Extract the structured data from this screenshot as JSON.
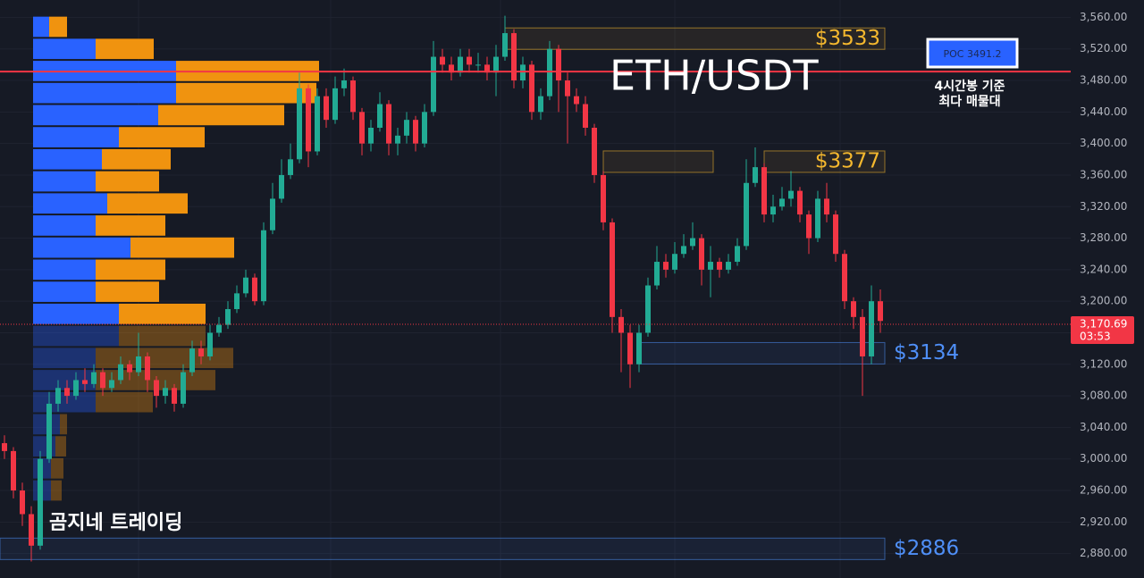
{
  "chart_data": {
    "type": "candlestick",
    "title": "ETH/USDT",
    "watermark": "곰지네 트레이딩",
    "ylim": [
      2849,
      3582
    ],
    "yticks": [
      {
        "value": 3560,
        "label": "3,560.00"
      },
      {
        "value": 3520,
        "label": "3,520.00"
      },
      {
        "value": 3480,
        "label": "3,480.00"
      },
      {
        "value": 3440,
        "label": "3,440.00"
      },
      {
        "value": 3400,
        "label": "3,400.00"
      },
      {
        "value": 3360,
        "label": "3,360.00"
      },
      {
        "value": 3320,
        "label": "3,320.00"
      },
      {
        "value": 3280,
        "label": "3,280.00"
      },
      {
        "value": 3240,
        "label": "3,240.00"
      },
      {
        "value": 3200,
        "label": "3,200.00"
      },
      {
        "value": 3160,
        "label": "3,160.00"
      },
      {
        "value": 3120,
        "label": "3,120.00"
      },
      {
        "value": 3080,
        "label": "3,080.00"
      },
      {
        "value": 3040,
        "label": "3,040.00"
      },
      {
        "value": 3000,
        "label": "3,000.00"
      },
      {
        "value": 2960,
        "label": "2,960.00"
      },
      {
        "value": 2920,
        "label": "2,920.00"
      },
      {
        "value": 2880,
        "label": "2,880.00"
      }
    ],
    "up_color": "#22ab94",
    "down_color": "#f23645",
    "open": [
      3020,
      3010,
      2960,
      2930,
      2890,
      3000,
      3070,
      3090,
      3080,
      3100,
      3095,
      3110,
      3090,
      3100,
      3120,
      3110,
      3130,
      3100,
      3080,
      3090,
      3070,
      3110,
      3140,
      3130,
      3160,
      3170,
      3190,
      3210,
      3230,
      3200,
      3290,
      3330,
      3360,
      3380,
      3470,
      3390,
      3460,
      3430,
      3470,
      3480,
      3440,
      3400,
      3420,
      3450,
      3400,
      3410,
      3430,
      3400,
      3440,
      3510,
      3500,
      3490,
      3510,
      3500,
      3500,
      3490,
      3510,
      3540,
      3480,
      3500,
      3440,
      3460,
      3520,
      3480,
      3460,
      3450,
      3420,
      3360,
      3300,
      3180,
      3160,
      3120,
      3160,
      3220,
      3250,
      3240,
      3260,
      3270,
      3280,
      3240,
      3250,
      3240,
      3250,
      3270,
      3350,
      3370,
      3310,
      3320,
      3330,
      3340,
      3310,
      3280,
      3330,
      3310,
      3260,
      3200,
      3180,
      3130,
      3200
    ],
    "high": [
      3030,
      3015,
      2970,
      2940,
      3010,
      3085,
      3100,
      3100,
      3110,
      3115,
      3120,
      3115,
      3110,
      3130,
      3125,
      3160,
      3135,
      3105,
      3100,
      3095,
      3120,
      3150,
      3150,
      3170,
      3180,
      3200,
      3220,
      3240,
      3235,
      3300,
      3350,
      3380,
      3400,
      3490,
      3475,
      3470,
      3470,
      3485,
      3495,
      3485,
      3445,
      3430,
      3465,
      3455,
      3420,
      3440,
      3435,
      3450,
      3530,
      3520,
      3510,
      3520,
      3520,
      3515,
      3510,
      3525,
      3562,
      3545,
      3510,
      3505,
      3470,
      3530,
      3525,
      3490,
      3470,
      3460,
      3425,
      3365,
      3305,
      3190,
      3170,
      3170,
      3230,
      3270,
      3260,
      3275,
      3285,
      3300,
      3285,
      3270,
      3255,
      3260,
      3280,
      3380,
      3395,
      3375,
      3335,
      3345,
      3365,
      3345,
      3315,
      3340,
      3350,
      3315,
      3265,
      3205,
      3190,
      3220,
      3215
    ],
    "low": [
      3000,
      2950,
      2915,
      2870,
      2885,
      2995,
      3060,
      3070,
      3075,
      3085,
      3090,
      3080,
      3085,
      3095,
      3100,
      3105,
      3085,
      3065,
      3070,
      3060,
      3065,
      3105,
      3120,
      3125,
      3155,
      3165,
      3185,
      3205,
      3195,
      3195,
      3285,
      3325,
      3355,
      3375,
      3370,
      3385,
      3420,
      3425,
      3460,
      3430,
      3385,
      3390,
      3415,
      3385,
      3385,
      3400,
      3390,
      3395,
      3435,
      3490,
      3480,
      3485,
      3490,
      3490,
      3480,
      3460,
      3505,
      3470,
      3470,
      3430,
      3430,
      3455,
      3440,
      3400,
      3440,
      3410,
      3350,
      3290,
      3160,
      3110,
      3090,
      3110,
      3155,
      3215,
      3230,
      3235,
      3255,
      3265,
      3220,
      3205,
      3230,
      3235,
      3245,
      3265,
      3345,
      3300,
      3300,
      3315,
      3320,
      3300,
      3260,
      3275,
      3300,
      3250,
      3190,
      3165,
      3080,
      3120,
      3160
    ],
    "close": [
      3010,
      2960,
      2930,
      2890,
      3000,
      3070,
      3090,
      3080,
      3100,
      3095,
      3110,
      3090,
      3100,
      3120,
      3110,
      3130,
      3100,
      3080,
      3090,
      3070,
      3110,
      3140,
      3130,
      3160,
      3170,
      3190,
      3210,
      3230,
      3200,
      3290,
      3330,
      3360,
      3380,
      3470,
      3390,
      3460,
      3430,
      3470,
      3480,
      3440,
      3400,
      3420,
      3450,
      3400,
      3410,
      3430,
      3400,
      3440,
      3510,
      3500,
      3490,
      3510,
      3500,
      3500,
      3490,
      3510,
      3540,
      3480,
      3500,
      3440,
      3460,
      3520,
      3480,
      3460,
      3450,
      3420,
      3360,
      3300,
      3180,
      3160,
      3120,
      3160,
      3220,
      3250,
      3240,
      3260,
      3270,
      3280,
      3240,
      3250,
      3240,
      3250,
      3270,
      3350,
      3370,
      3310,
      3320,
      3330,
      3340,
      3310,
      3280,
      3330,
      3310,
      3260,
      3200,
      3180,
      3130,
      3200,
      3175
    ],
    "volume_profile": {
      "bins": [
        3562,
        3534,
        3506,
        3478,
        3450,
        3422,
        3394,
        3366,
        3338,
        3310,
        3282,
        3254,
        3226,
        3198,
        3170,
        3142,
        3114,
        3086,
        3058,
        3030,
        3002,
        2974,
        2946
      ],
      "buy": [
        18,
        70,
        160,
        160,
        140,
        96,
        77,
        70,
        83,
        70,
        109,
        70,
        70,
        96,
        96,
        70,
        70,
        70,
        30,
        25,
        20,
        20
      ],
      "sell": [
        20,
        65,
        160,
        157,
        141,
        96,
        77,
        71,
        90,
        78,
        116,
        78,
        71,
        97,
        97,
        154,
        134,
        64,
        8,
        12,
        14,
        12
      ],
      "buy_color": "#2962ff",
      "sell_color": "#f0930f"
    },
    "levels": [
      {
        "value": 3533,
        "label": "$3533",
        "color": "#f5b82e"
      },
      {
        "value": 3377,
        "label": "$3377",
        "color": "#f5b82e"
      },
      {
        "value": 3134,
        "label": "$3134",
        "color": "#4f8ff7"
      },
      {
        "value": 2886,
        "label": "$2886",
        "color": "#4f8ff7"
      }
    ],
    "poc": {
      "value": 3491.2,
      "label": "POC  3491.2",
      "annotation": [
        "4시간봉 기준",
        "최다 매물대"
      ],
      "color": "#f23645"
    },
    "current_price": {
      "value": 3170.69,
      "label": "3,170.69",
      "countdown": "03:53"
    }
  }
}
